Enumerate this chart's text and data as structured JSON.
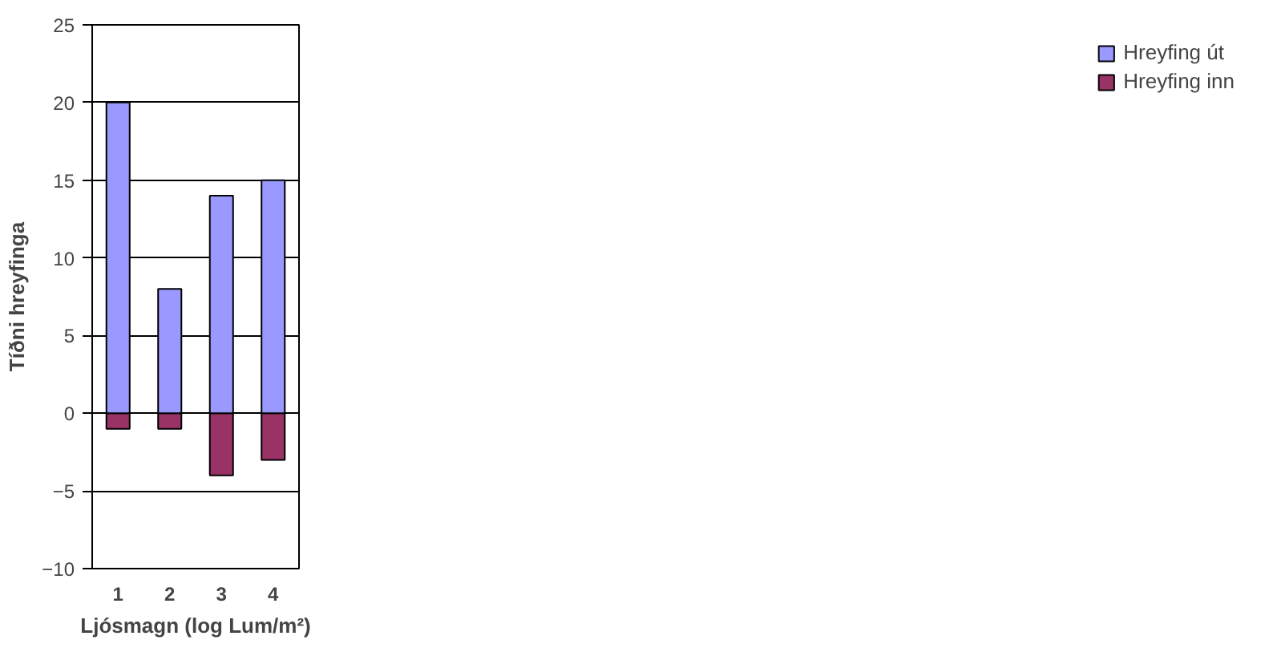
{
  "chart_data": {
    "type": "bar",
    "stacked": true,
    "xlabel": "Ljósmagn (log Lum/m²)",
    "ylabel": "Tíðni hreyfinga",
    "categories": [
      "1",
      "2",
      "3",
      "4"
    ],
    "series": [
      {
        "name": "Hreyfing inn",
        "color": "#993366",
        "values": [
          -1,
          -1,
          -4,
          -3
        ]
      },
      {
        "name": "Hreyfing út",
        "color": "#9999ff",
        "values": [
          20,
          8,
          14,
          15
        ]
      }
    ],
    "ylim": [
      -10,
      25
    ],
    "yticks": [
      -10,
      -5,
      0,
      5,
      10,
      15,
      20,
      25
    ],
    "grid": "y",
    "legend": "right"
  }
}
